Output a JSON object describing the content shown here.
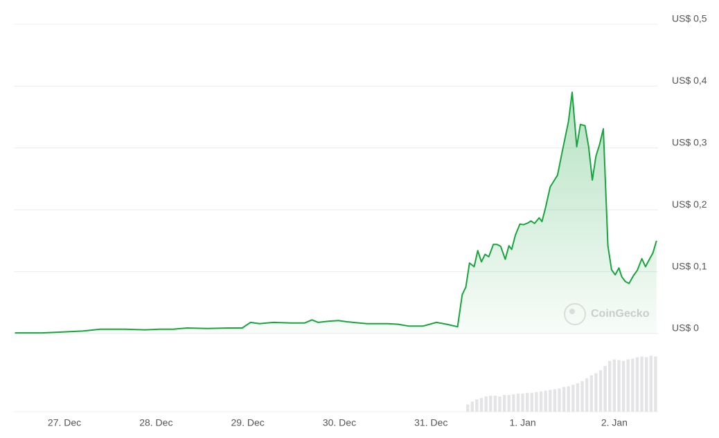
{
  "chart_data": [
    {
      "type": "line",
      "fill": true,
      "watermark": "CoinGecko",
      "color": "#18a33e",
      "grid": true,
      "x": [
        -0.54,
        -0.25,
        -0.1,
        0.2,
        0.39,
        0.66,
        0.88,
        1.04,
        1.19,
        1.34,
        1.56,
        1.79,
        1.94,
        2.03,
        2.13,
        2.28,
        2.47,
        2.62,
        2.7,
        2.77,
        2.89,
        2.99,
        3.08,
        3.3,
        3.53,
        3.64,
        3.76,
        3.91,
        4.06,
        4.17,
        4.29,
        4.34,
        4.38,
        4.42,
        4.47,
        4.51,
        4.55,
        4.59,
        4.63,
        4.68,
        4.72,
        4.76,
        4.81,
        4.85,
        4.88,
        4.92,
        4.97,
        5.01,
        5.06,
        5.09,
        5.13,
        5.18,
        5.21,
        5.25,
        5.3,
        5.38,
        5.43,
        5.5,
        5.54,
        5.59,
        5.63,
        5.68,
        5.72,
        5.76,
        5.8,
        5.84,
        5.88,
        5.93,
        5.97,
        6.01,
        6.05,
        6.08,
        6.12,
        6.16,
        6.21,
        6.25,
        6.3,
        6.34,
        6.39,
        6.42,
        6.46
      ],
      "values": [
        0.001,
        0.001,
        0.002,
        0.004,
        0.007,
        0.007,
        0.006,
        0.007,
        0.007,
        0.009,
        0.008,
        0.009,
        0.009,
        0.018,
        0.016,
        0.018,
        0.017,
        0.017,
        0.022,
        0.018,
        0.02,
        0.021,
        0.019,
        0.016,
        0.016,
        0.015,
        0.012,
        0.012,
        0.018,
        0.015,
        0.011,
        0.063,
        0.075,
        0.114,
        0.108,
        0.134,
        0.116,
        0.128,
        0.124,
        0.144,
        0.144,
        0.141,
        0.12,
        0.142,
        0.136,
        0.159,
        0.177,
        0.176,
        0.179,
        0.182,
        0.178,
        0.187,
        0.181,
        0.204,
        0.237,
        0.256,
        0.293,
        0.343,
        0.39,
        0.302,
        0.338,
        0.336,
        0.302,
        0.248,
        0.287,
        0.306,
        0.331,
        0.142,
        0.103,
        0.095,
        0.106,
        0.092,
        0.084,
        0.081,
        0.094,
        0.102,
        0.121,
        0.108,
        0.122,
        0.13,
        0.15
      ],
      "xlim": [
        -0.552,
        6.477
      ],
      "xticks": [
        {
          "value": 0,
          "label": "27. Dec"
        },
        {
          "value": 1,
          "label": "28. Dec"
        },
        {
          "value": 2,
          "label": "29. Dec"
        },
        {
          "value": 3,
          "label": "30. Dec"
        },
        {
          "value": 4,
          "label": "31. Dec"
        },
        {
          "value": 5,
          "label": "1. Jan"
        },
        {
          "value": 6,
          "label": "2. Jan"
        }
      ],
      "ylim": [
        0,
        0.5
      ],
      "yticks": [
        {
          "value": 0,
          "label": "US$ 0"
        },
        {
          "value": 0.1,
          "label": "US$ 0,1"
        },
        {
          "value": 0.2,
          "label": "US$ 0,2"
        },
        {
          "value": 0.3,
          "label": "US$ 0,3"
        },
        {
          "value": 0.4,
          "label": "US$ 0,4"
        },
        {
          "value": 0.5,
          "label": "US$ 0,5"
        }
      ]
    },
    {
      "type": "bar",
      "color": "#e4e4e7",
      "x": [
        4.4,
        4.45,
        4.5,
        4.55,
        4.6,
        4.65,
        4.7,
        4.75,
        4.8,
        4.85,
        4.9,
        4.95,
        5.0,
        5.05,
        5.1,
        5.15,
        5.2,
        5.25,
        5.3,
        5.35,
        5.4,
        5.45,
        5.5,
        5.55,
        5.6,
        5.65,
        5.7,
        5.75,
        5.8,
        5.85,
        5.9,
        5.95,
        6.0,
        6.05,
        6.1,
        6.15,
        6.2,
        6.25,
        6.3,
        6.35,
        6.4,
        6.45
      ],
      "values": [
        10,
        14,
        17,
        19,
        21,
        22,
        22,
        21,
        23,
        23,
        24,
        25,
        25,
        26,
        26,
        27,
        28,
        29,
        30,
        31,
        32,
        34,
        35,
        37,
        39,
        42,
        46,
        50,
        53,
        57,
        63,
        70,
        72,
        71,
        70,
        72,
        73,
        75,
        76,
        75,
        77,
        76
      ],
      "xlim": [
        -0.552,
        6.477
      ],
      "ylim": [
        0,
        100
      ]
    }
  ]
}
